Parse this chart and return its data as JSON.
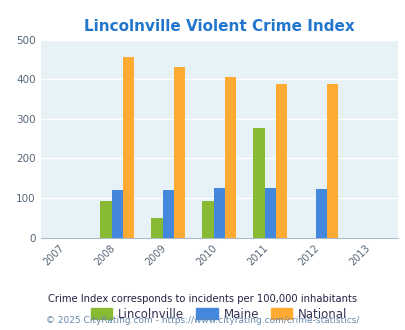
{
  "title": "Lincolnville Violent Crime Index",
  "all_years": [
    2007,
    2008,
    2009,
    2010,
    2011,
    2012,
    2013
  ],
  "data_years": [
    2008,
    2009,
    2010,
    2011,
    2012
  ],
  "lincolnville": [
    93,
    50,
    93,
    278,
    0
  ],
  "maine": [
    120,
    120,
    124,
    124,
    122
  ],
  "national": [
    455,
    432,
    405,
    387,
    387
  ],
  "colors": {
    "lincolnville": "#88bb33",
    "maine": "#4488dd",
    "national": "#ffaa33"
  },
  "ylim": [
    0,
    500
  ],
  "yticks": [
    0,
    100,
    200,
    300,
    400,
    500
  ],
  "bar_width": 0.22,
  "background_color": "#e6f2f5",
  "legend_labels": [
    "Lincolnville",
    "Maine",
    "National"
  ],
  "footnote1": "Crime Index corresponds to incidents per 100,000 inhabitants",
  "footnote2": "© 2025 CityRating.com - https://www.cityrating.com/crime-statistics/",
  "title_color": "#2277cc",
  "grid_color": "#ccdddd",
  "footnote1_color": "#222244",
  "footnote2_color": "#6688aa",
  "xlim": [
    2006.5,
    2013.5
  ]
}
